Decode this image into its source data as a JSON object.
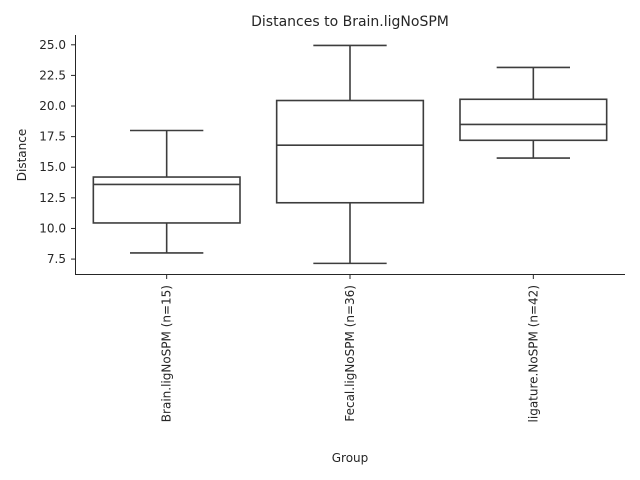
{
  "chart_data": {
    "type": "box",
    "title": "Distances to Brain.ligNoSPM",
    "xlabel": "Group",
    "ylabel": "Distance",
    "ylim": [
      6.2,
      25.8
    ],
    "yticks": [
      "7.5",
      "10.0",
      "12.5",
      "15.0",
      "17.5",
      "20.0",
      "22.5",
      "25.0"
    ],
    "grid": false,
    "categories": [
      "Brain.ligNoSPM (n=15)",
      "Fecal.ligNoSPM (n=36)",
      "ligature.NoSPM (n=42)"
    ],
    "boxes": [
      {
        "whisker_low": 8.0,
        "q1": 10.45,
        "median": 13.6,
        "q3": 14.2,
        "whisker_high": 18.0
      },
      {
        "whisker_low": 7.15,
        "q1": 12.1,
        "median": 16.8,
        "q3": 20.45,
        "whisker_high": 24.95
      },
      {
        "whisker_low": 15.75,
        "q1": 17.2,
        "median": 18.5,
        "q3": 20.55,
        "whisker_high": 23.15
      }
    ]
  }
}
